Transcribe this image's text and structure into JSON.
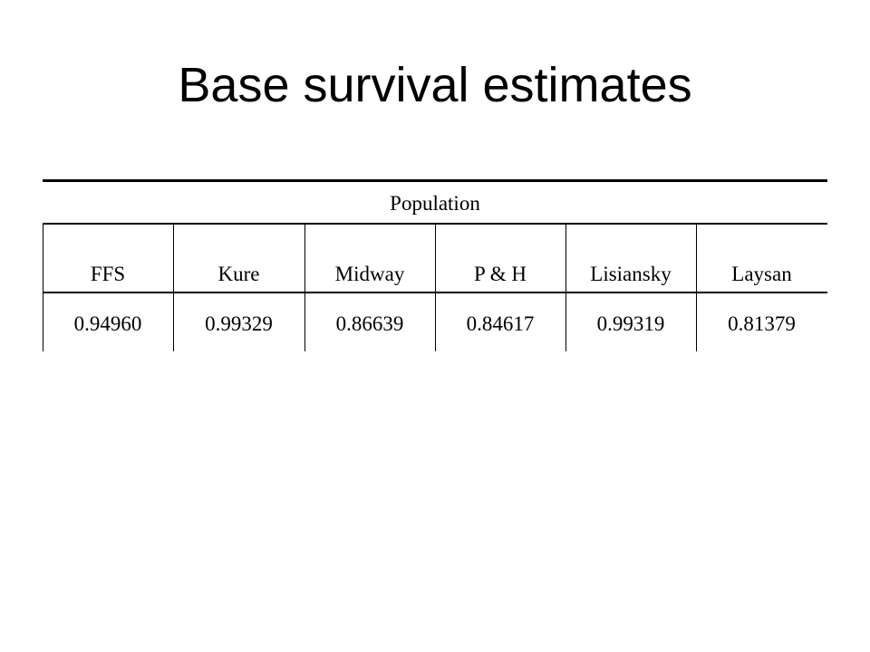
{
  "slide": {
    "title": "Base survival estimates"
  },
  "table": {
    "group_header": "Population",
    "columns": [
      "FFS",
      "Kure",
      "Midway",
      "P & H",
      "Lisiansky",
      "Laysan"
    ],
    "values": [
      "0.94960",
      "0.99329",
      "0.86639",
      "0.84617",
      "0.99319",
      "0.81379"
    ]
  }
}
